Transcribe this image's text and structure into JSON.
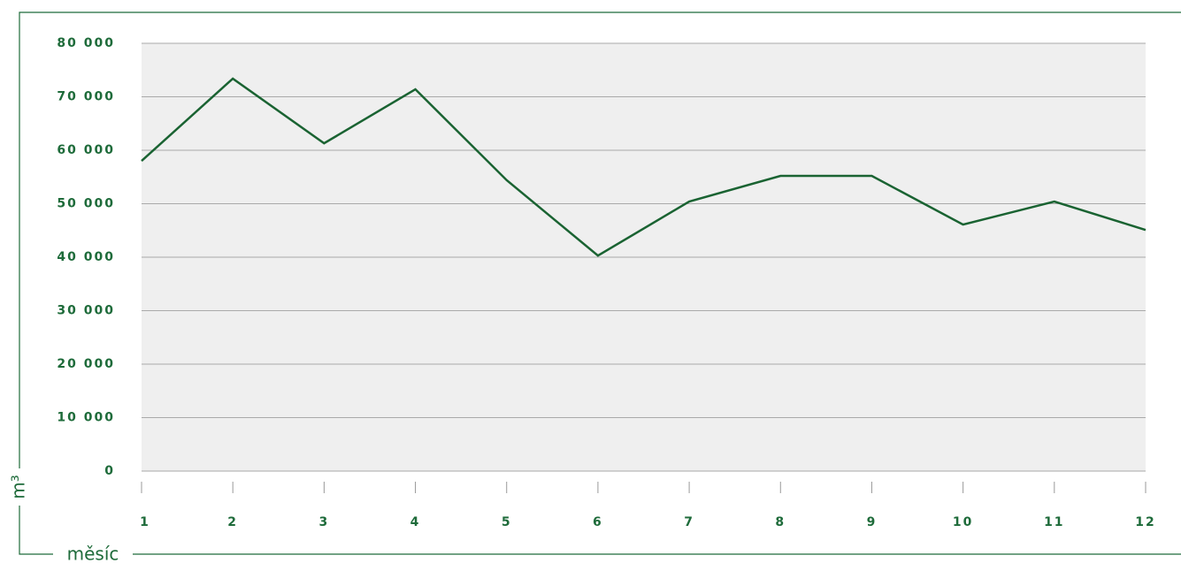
{
  "chart_data": {
    "type": "line",
    "x_label": "měsíc",
    "y_label": "m³",
    "categories": [
      "1",
      "2",
      "3",
      "4",
      "5",
      "6",
      "7",
      "8",
      "9",
      "10",
      "11",
      "12"
    ],
    "series": [
      {
        "name": "m³",
        "color": "#1a6332",
        "values": [
          58000,
          73400,
          61300,
          71400,
          54400,
          40300,
          50400,
          55200,
          55200,
          46100,
          50400,
          45100
        ]
      }
    ],
    "ylim": [
      0,
      80000
    ],
    "yticks": [
      0,
      {
        "value": 10000,
        "label": "10 000"
      },
      {
        "value": 20000,
        "label": "20 000"
      },
      {
        "value": 30000,
        "label": "30 000"
      },
      {
        "value": 40000,
        "label": "40 000"
      },
      {
        "value": 50000,
        "label": "50 000"
      },
      {
        "value": 60000,
        "label": "60 000"
      },
      {
        "value": 70000,
        "label": "70 000"
      },
      {
        "value": 80000,
        "label": "80 000"
      }
    ],
    "grid": true
  }
}
